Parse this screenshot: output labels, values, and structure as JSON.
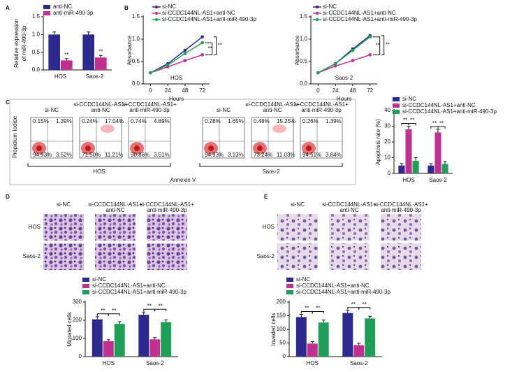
{
  "panels": [
    "A",
    "B",
    "C",
    "D",
    "E"
  ],
  "chart_data": [
    {
      "type": "bar",
      "ylabel": [
        "Relative expression",
        "of miR-490-3p"
      ],
      "categories": [
        "HOS",
        "Saos-2"
      ],
      "series": [
        {
          "name": "anti-NC",
          "color": "#2d2a8f",
          "values": [
            1.0,
            1.0
          ],
          "errors": [
            0.07,
            0.07
          ]
        },
        {
          "name": "anti-miR-490-3p",
          "color": "#c2308f",
          "values": [
            0.27,
            0.35
          ],
          "errors": [
            0.05,
            0.06
          ]
        }
      ],
      "ylim": [
        0,
        1.5
      ],
      "yticks": [
        {
          "value": 0,
          "label": "0.0"
        },
        {
          "value": 0.5,
          "label": "0.5"
        },
        {
          "value": 1,
          "label": "1.0"
        },
        {
          "value": 1.5,
          "label": "1.5"
        }
      ],
      "annotations": [
        "**",
        "**"
      ]
    },
    {
      "type": "line",
      "subtitle": "HOS",
      "xlabel": "Hours",
      "ylabel": "Absorbance",
      "x": [
        0,
        24,
        48,
        72
      ],
      "xlim": [
        -10,
        82
      ],
      "xticks": [
        0,
        24,
        48,
        72
      ],
      "series": [
        {
          "name": "si-NC",
          "color": "#2d2a8f",
          "values": [
            0.25,
            0.45,
            0.75,
            1.05
          ]
        },
        {
          "name": "si-CCDC144NL-AS1+anti-NC",
          "color": "#c2308f",
          "values": [
            0.25,
            0.38,
            0.52,
            0.65
          ]
        },
        {
          "name": "si-CCDC144NL-AS1+anti-miR-490-3p",
          "color": "#1f9e55",
          "values": [
            0.25,
            0.42,
            0.68,
            0.92
          ]
        }
      ],
      "ylim": [
        0,
        1.5
      ],
      "yticks": [
        {
          "value": 0,
          "label": "0.0"
        },
        {
          "value": 0.5,
          "label": "0.5"
        },
        {
          "value": 1,
          "label": "1.0"
        },
        {
          "value": 1.5,
          "label": "1.5"
        }
      ],
      "annotations": [
        "**",
        "**"
      ]
    },
    {
      "type": "line",
      "subtitle": "Saos-2",
      "xlabel": "Hours",
      "ylabel": "Absorbance",
      "x": [
        0,
        24,
        48,
        72
      ],
      "xlim": [
        -10,
        82
      ],
      "xticks": [
        0,
        24,
        48,
        72
      ],
      "series": [
        {
          "name": "si-NC",
          "color": "#2d2a8f",
          "values": [
            0.25,
            0.45,
            0.78,
            1.08
          ]
        },
        {
          "name": "si-CCDC144NL-AS1+anti-NC",
          "color": "#c2308f",
          "values": [
            0.25,
            0.4,
            0.52,
            0.65
          ]
        },
        {
          "name": "si-CCDC144NL-AS1+anti-miR-490-3p",
          "color": "#1f9e55",
          "values": [
            0.25,
            0.45,
            0.75,
            1.05
          ]
        }
      ],
      "ylim": [
        0,
        1.5
      ],
      "yticks": [
        {
          "value": 0,
          "label": "0.0"
        },
        {
          "value": 0.5,
          "label": "0.5"
        },
        {
          "value": 1,
          "label": "1.0"
        },
        {
          "value": 1.5,
          "label": "1.5"
        }
      ],
      "annotations": [
        "**",
        "**"
      ]
    },
    {
      "type": "bar",
      "ylabel": "Apoptosis rate (%)",
      "categories": [
        "HOS",
        "Saos-2"
      ],
      "series": [
        {
          "name": "si-NC",
          "color": "#2d2a8f",
          "values": [
            5,
            5
          ],
          "errors": [
            1.2,
            1.2
          ]
        },
        {
          "name": "si-CCDC144NL-AS1+anti-NC",
          "color": "#c2308f",
          "values": [
            28,
            26
          ],
          "errors": [
            2,
            2
          ]
        },
        {
          "name": "si-CCDC144NL-AS1+anti-miR-490-3p",
          "color": "#1f9e55",
          "values": [
            8,
            6
          ],
          "errors": [
            2,
            1.5
          ]
        }
      ],
      "ylim": [
        0,
        40
      ],
      "yticks": [
        0,
        10,
        20,
        30,
        40
      ],
      "annotations": [
        "**",
        "**",
        "**",
        "**"
      ]
    },
    {
      "type": "bar",
      "ylabel": "Migrated cells",
      "categories": [
        "HOS",
        "Saos-2"
      ],
      "series": [
        {
          "name": "si-NC",
          "color": "#2d2a8f",
          "values": [
            205,
            230
          ],
          "errors": [
            15,
            15
          ]
        },
        {
          "name": "si-CCDC144NL-AS1+anti-NC",
          "color": "#c2308f",
          "values": [
            85,
            95
          ],
          "errors": [
            8,
            10
          ]
        },
        {
          "name": "si-CCDC144NL-AS1+anti-miR-490-3p",
          "color": "#1f9e55",
          "values": [
            180,
            190
          ],
          "errors": [
            12,
            12
          ]
        }
      ],
      "ylim": [
        0,
        300
      ],
      "yticks": [
        0,
        100,
        200,
        300
      ],
      "annotations": [
        "**",
        "**",
        "**",
        "**"
      ]
    },
    {
      "type": "bar",
      "ylabel": "Invaded cells",
      "categories": [
        "HOS",
        "Saos-2"
      ],
      "series": [
        {
          "name": "si-NC",
          "color": "#2d2a8f",
          "values": [
            145,
            160
          ],
          "errors": [
            10,
            10
          ]
        },
        {
          "name": "si-CCDC144NL-AS1+anti-NC",
          "color": "#c2308f",
          "values": [
            48,
            42
          ],
          "errors": [
            7,
            7
          ]
        },
        {
          "name": "si-CCDC144NL-AS1+anti-miR-490-3p",
          "color": "#1f9e55",
          "values": [
            125,
            140
          ],
          "errors": [
            9,
            8
          ]
        }
      ],
      "ylim": [
        0,
        200
      ],
      "yticks": [
        0,
        50,
        100,
        150,
        200
      ],
      "annotations": [
        "**",
        "**",
        "**",
        "**"
      ]
    }
  ],
  "flow": {
    "xlabel": "Annexin V",
    "ylabel": "Propidium Iodide",
    "groups": [
      {
        "name": "HOS",
        "plots": [
          {
            "title": [
              "si-NC"
            ],
            "quadrants": [
              "0.15%",
              "1.39%",
              "94.93%",
              "3.52%"
            ]
          },
          {
            "title": [
              "si-CCDC144NL-AS1+",
              "anti-NC"
            ],
            "quadrants": [
              "0.24%",
              "17.04%",
              "71.50%",
              "11.21%"
            ]
          },
          {
            "title": [
              "si-CCDC144NL-AS1+",
              "anti-miR-490-3p"
            ],
            "quadrants": [
              "0.74%",
              "4.89%",
              "90.86%",
              "3.51%"
            ]
          }
        ]
      },
      {
        "name": "Saos-2",
        "plots": [
          {
            "title": [
              "si-NC"
            ],
            "quadrants": [
              "0.28%",
              "1.65%",
              "94.93%",
              "3.13%"
            ]
          },
          {
            "title": [
              "si-CCDC144NL-AS1+",
              "anti-NC"
            ],
            "quadrants": [
              "0.48%",
              "15.25%",
              "73.24%",
              "11.03%"
            ]
          },
          {
            "title": [
              "si-CCDC144NL-AS1+",
              "anti-miR-490-3p"
            ],
            "quadrants": [
              "0.26%",
              "1.39%",
              "94.51%",
              "3.84%"
            ]
          }
        ]
      }
    ]
  },
  "migration": {
    "columns": [
      [
        "si-NC"
      ],
      [
        "si-CCDC144NL-AS1+",
        "anti-NC"
      ],
      [
        "si-CCDC144NL-AS1+",
        "anti-miR-490-3p"
      ]
    ],
    "rows": [
      "HOS",
      "Saos-2"
    ]
  },
  "invasion": {
    "columns": [
      [
        "si-NC"
      ],
      [
        "si-CCDC144NL-AS1+",
        "anti-NC"
      ],
      [
        "si-CCDC144NL-AS1+",
        "anti-miR-490-3p"
      ]
    ],
    "rows": [
      "HOS",
      "Saos-2"
    ]
  }
}
